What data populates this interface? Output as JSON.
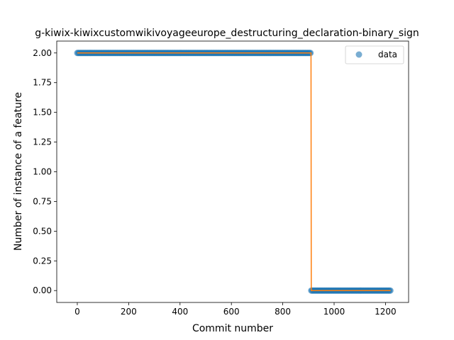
{
  "chart_data": {
    "type": "scatter",
    "title": "g-kiwix-kiwixcustomwikivoyageeurope_destructuring_declaration-binary_sign",
    "xlabel": "Commit number",
    "ylabel": "Number of instance of a feature",
    "xlim": [
      -80,
      1290
    ],
    "ylim": [
      -0.1,
      2.1
    ],
    "xticks": [
      0,
      200,
      400,
      600,
      800,
      1000,
      1200
    ],
    "xtick_labels": [
      "0",
      "200",
      "400",
      "600",
      "800",
      "1000",
      "1200"
    ],
    "yticks": [
      0.0,
      0.25,
      0.5,
      0.75,
      1.0,
      1.25,
      1.5,
      1.75,
      2.0
    ],
    "ytick_labels": [
      "0.00",
      "0.25",
      "0.50",
      "0.75",
      "1.00",
      "1.25",
      "1.50",
      "1.75",
      "2.00"
    ],
    "grid": false,
    "legend": {
      "entries": [
        "data"
      ],
      "placement": "top-right"
    },
    "series": [
      {
        "name": "data",
        "kind": "markers",
        "color": "#1f77b4",
        "segments": [
          {
            "x_start": 0,
            "x_end": 910,
            "y": 2
          },
          {
            "x_start": 911,
            "x_end": 1220,
            "y": 0
          }
        ]
      },
      {
        "kind": "step-line",
        "color": "#ff7f0e",
        "x": [
          0,
          910,
          911,
          1220
        ],
        "y": [
          2,
          2,
          0,
          0
        ]
      }
    ]
  }
}
